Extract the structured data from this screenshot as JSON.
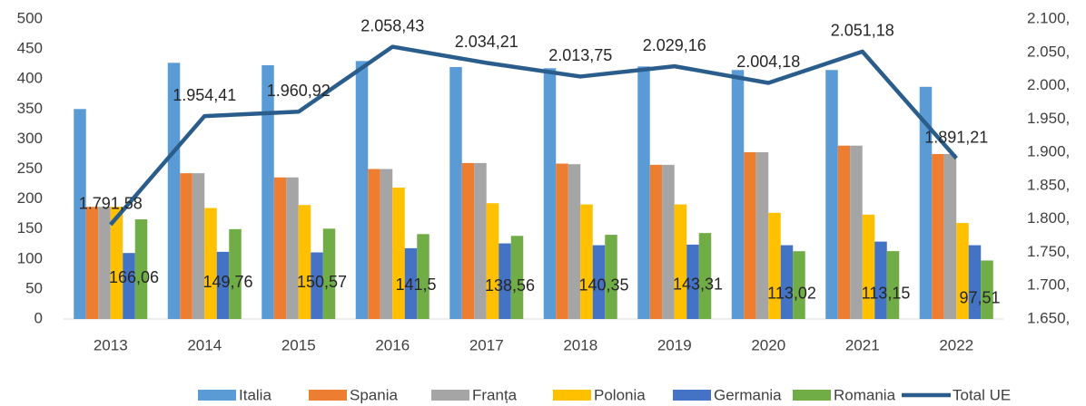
{
  "chart_data": {
    "type": "bar",
    "categories": [
      "2013",
      "2014",
      "2015",
      "2016",
      "2017",
      "2018",
      "2019",
      "2020",
      "2021",
      "2022"
    ],
    "series": [
      {
        "name": "Italia",
        "color": "#5b9bd5",
        "values": [
          350,
          427,
          423,
          430,
          420,
          418,
          421,
          415,
          415,
          387
        ]
      },
      {
        "name": "Spania",
        "color": "#ed7d31",
        "values": [
          187,
          243,
          236,
          250,
          260,
          259,
          257,
          278,
          289,
          275
        ]
      },
      {
        "name": "Franța",
        "color": "#a5a5a5",
        "values": [
          187,
          243,
          236,
          250,
          260,
          258,
          257,
          278,
          289,
          275
        ]
      },
      {
        "name": "Polonia",
        "color": "#ffc000",
        "values": [
          187,
          185,
          190,
          219,
          193,
          191,
          191,
          177,
          174,
          160
        ]
      },
      {
        "name": "Germania",
        "color": "#4472c4",
        "values": [
          110,
          112,
          111,
          118,
          126,
          123,
          124,
          123,
          129,
          123
        ]
      },
      {
        "name": "Romania",
        "color": "#70ad47",
        "values": [
          166.06,
          149.76,
          150.57,
          141.5,
          138.56,
          140.35,
          143.31,
          113.02,
          113.15,
          97.51
        ],
        "value_labels": [
          "166,06",
          "149,76",
          "150,57",
          "141,5",
          "138,56",
          "140,35",
          "143,31",
          "113,02",
          "113,15",
          "97,51"
        ]
      },
      {
        "name": "Total UE",
        "color": "#2a5d8c",
        "type": "line",
        "axis": "y2",
        "values": [
          1791.58,
          1954.41,
          1960.92,
          2058.43,
          2034.21,
          2013.75,
          2029.16,
          2004.18,
          2051.18,
          1891.21
        ],
        "value_labels": [
          "1.791,58",
          "1.954,41",
          "1.960,92",
          "2.058,43",
          "2.034,21",
          "2.013,75",
          "2.029,16",
          "2.004,18",
          "2.051,18",
          "1.891,21"
        ]
      }
    ],
    "ylim": [
      0,
      500
    ],
    "yticks": [
      0,
      50,
      100,
      150,
      200,
      250,
      300,
      350,
      400,
      450,
      500
    ],
    "y2lim": [
      1650,
      2100
    ],
    "y2ticks": [
      {
        "value": 1650,
        "label": "1.650,"
      },
      {
        "value": 1700,
        "label": "1.700,"
      },
      {
        "value": 1750,
        "label": "1.750,"
      },
      {
        "value": 1800,
        "label": "1.800,"
      },
      {
        "value": 1850,
        "label": "1.850,"
      },
      {
        "value": 1900,
        "label": "1.900,"
      },
      {
        "value": 1950,
        "label": "1.950,"
      },
      {
        "value": 2000,
        "label": "2.000,"
      },
      {
        "value": 2050,
        "label": "2.050,"
      },
      {
        "value": 2100,
        "label": "2.100,"
      }
    ],
    "grid": false,
    "legend": "bottom"
  }
}
